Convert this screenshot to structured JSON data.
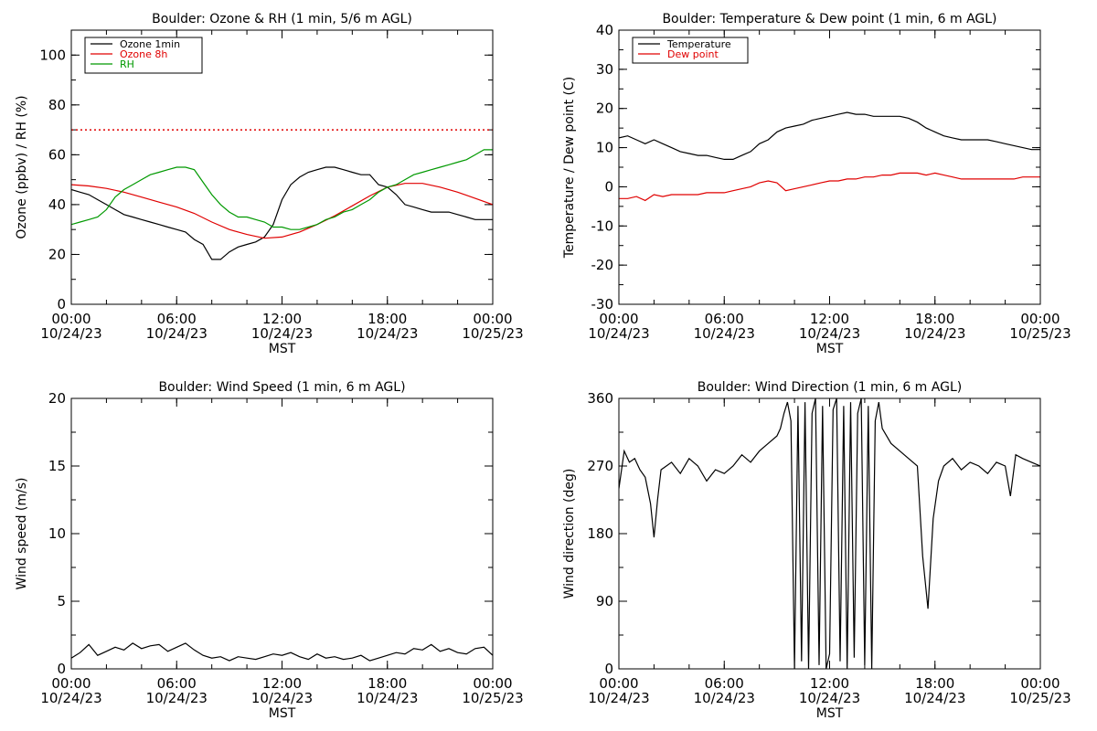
{
  "chart_data": [
    {
      "type": "line",
      "title": "Boulder: Ozone & RH (1 min, 5/6 m AGL)",
      "ylabel": "Ozone (ppbv) / RH (%)",
      "xlabel": "MST",
      "xlim": [
        0,
        24
      ],
      "ylim": [
        0,
        110
      ],
      "y_ticks": [
        0,
        20,
        40,
        60,
        80,
        100
      ],
      "x_ticks": [
        {
          "time": "00:00",
          "date": "10/24/23"
        },
        {
          "time": "06:00",
          "date": "10/24/23"
        },
        {
          "time": "12:00",
          "date": "10/24/23"
        },
        {
          "time": "18:00",
          "date": "10/24/23"
        },
        {
          "time": "00:00",
          "date": "10/25/23"
        }
      ],
      "legend": {
        "position": "top-left"
      },
      "series": [
        {
          "name": "Ozone 1min",
          "color": "#000000",
          "x": [
            0,
            0.5,
            1,
            1.5,
            2,
            2.5,
            3,
            3.5,
            4,
            4.5,
            5,
            5.5,
            6,
            6.5,
            7,
            7.5,
            8,
            8.5,
            9,
            9.5,
            10,
            10.5,
            11,
            11.5,
            12,
            12.5,
            13,
            13.5,
            14,
            14.5,
            15,
            15.5,
            16,
            16.5,
            17,
            17.5,
            18,
            18.5,
            19,
            19.5,
            20,
            20.5,
            21,
            21.5,
            22,
            22.5,
            23,
            23.5,
            24
          ],
          "y": [
            46,
            45,
            44,
            42,
            40,
            38,
            36,
            35,
            34,
            33,
            32,
            31,
            30,
            29,
            26,
            24,
            18,
            18,
            21,
            23,
            24,
            25,
            27,
            32,
            42,
            48,
            51,
            53,
            54,
            55,
            55,
            54,
            53,
            52,
            52,
            48,
            47,
            44,
            40,
            39,
            38,
            37,
            37,
            37,
            36,
            35,
            34,
            34,
            34
          ]
        },
        {
          "name": "Ozone 8h",
          "color": "#e00000",
          "x": [
            0,
            1,
            2,
            3,
            4,
            5,
            6,
            7,
            8,
            9,
            10,
            11,
            12,
            13,
            14,
            15,
            16,
            17,
            18,
            19,
            20,
            21,
            22,
            23,
            24
          ],
          "y": [
            48,
            47.5,
            46.5,
            45,
            43,
            41,
            39,
            36.5,
            33,
            30,
            28,
            26.5,
            27,
            29,
            32,
            35.5,
            39.5,
            43.5,
            47,
            48.5,
            48.5,
            47,
            45,
            42.5,
            40
          ]
        },
        {
          "name": "RH",
          "color": "#009900",
          "x": [
            0,
            0.5,
            1,
            1.5,
            2,
            2.5,
            3,
            3.5,
            4,
            4.5,
            5,
            5.5,
            6,
            6.5,
            7,
            7.5,
            8,
            8.5,
            9,
            9.5,
            10,
            10.5,
            11,
            11.5,
            12,
            12.5,
            13,
            13.5,
            14,
            14.5,
            15,
            15.5,
            16,
            16.5,
            17,
            17.5,
            18,
            18.5,
            19,
            19.5,
            20,
            20.5,
            21,
            21.5,
            22,
            22.5,
            23,
            23.5,
            24
          ],
          "y": [
            32,
            33,
            34,
            35,
            38,
            43,
            46,
            48,
            50,
            52,
            53,
            54,
            55,
            55,
            54,
            49,
            44,
            40,
            37,
            35,
            35,
            34,
            33,
            31,
            31,
            30,
            30,
            31,
            32,
            34,
            35,
            37,
            38,
            40,
            42,
            45,
            47,
            48,
            50,
            52,
            53,
            54,
            55,
            56,
            57,
            58,
            60,
            62,
            62
          ]
        },
        {
          "name": "",
          "color": "#e00000",
          "style": "dotted",
          "x": [
            0,
            24
          ],
          "y": [
            70,
            70
          ]
        }
      ]
    },
    {
      "type": "line",
      "title": "Boulder: Temperature & Dew point (1 min, 6 m AGL)",
      "ylabel": "Temperature / Dew point (C)",
      "xlabel": "MST",
      "xlim": [
        0,
        24
      ],
      "ylim": [
        -30,
        40
      ],
      "y_ticks": [
        -30,
        -20,
        -10,
        0,
        10,
        20,
        30,
        40
      ],
      "x_ticks": [
        {
          "time": "00:00",
          "date": "10/24/23"
        },
        {
          "time": "06:00",
          "date": "10/24/23"
        },
        {
          "time": "12:00",
          "date": "10/24/23"
        },
        {
          "time": "18:00",
          "date": "10/24/23"
        },
        {
          "time": "00:00",
          "date": "10/25/23"
        }
      ],
      "legend": {
        "position": "top-left"
      },
      "series": [
        {
          "name": "Temperature",
          "color": "#000000",
          "x": [
            0,
            0.5,
            1,
            1.5,
            2,
            2.5,
            3,
            3.5,
            4,
            4.5,
            5,
            5.5,
            6,
            6.5,
            7,
            7.5,
            8,
            8.5,
            9,
            9.5,
            10,
            10.5,
            11,
            11.5,
            12,
            12.5,
            13,
            13.5,
            14,
            14.5,
            15,
            15.5,
            16,
            16.5,
            17,
            17.5,
            18,
            18.5,
            19,
            19.5,
            20,
            20.5,
            21,
            21.5,
            22,
            22.5,
            23,
            23.5,
            24
          ],
          "y": [
            12.5,
            13,
            12,
            11,
            12,
            11,
            10,
            9,
            8.5,
            8,
            8,
            7.5,
            7,
            7,
            8,
            9,
            11,
            12,
            14,
            15,
            15.5,
            16,
            17,
            17.5,
            18,
            18.5,
            19,
            18.5,
            18.5,
            18,
            18,
            18,
            18,
            17.5,
            16.5,
            15,
            14,
            13,
            12.5,
            12,
            12,
            12,
            12,
            11.5,
            11,
            10.5,
            10,
            9.5,
            9.5
          ]
        },
        {
          "name": "Dew point",
          "color": "#e00000",
          "x": [
            0,
            0.5,
            1,
            1.5,
            2,
            2.5,
            3,
            3.5,
            4,
            4.5,
            5,
            5.5,
            6,
            6.5,
            7,
            7.5,
            8,
            8.5,
            9,
            9.5,
            10,
            10.5,
            11,
            11.5,
            12,
            12.5,
            13,
            13.5,
            14,
            14.5,
            15,
            15.5,
            16,
            16.5,
            17,
            17.5,
            18,
            18.5,
            19,
            19.5,
            20,
            20.5,
            21,
            21.5,
            22,
            22.5,
            23,
            23.5,
            24
          ],
          "y": [
            -3,
            -3,
            -2.5,
            -3.5,
            -2,
            -2.5,
            -2,
            -2,
            -2,
            -2,
            -1.5,
            -1.5,
            -1.5,
            -1,
            -0.5,
            0,
            1,
            1.5,
            1,
            -1,
            -0.5,
            0,
            0.5,
            1,
            1.5,
            1.5,
            2,
            2,
            2.5,
            2.5,
            3,
            3,
            3.5,
            3.5,
            3.5,
            3,
            3.5,
            3,
            2.5,
            2,
            2,
            2,
            2,
            2,
            2,
            2,
            2.5,
            2.5,
            2.5
          ]
        }
      ]
    },
    {
      "type": "line",
      "title": "Boulder: Wind Speed (1 min, 6 m AGL)",
      "ylabel": "Wind speed (m/s)",
      "xlabel": "MST",
      "xlim": [
        0,
        24
      ],
      "ylim": [
        0,
        20
      ],
      "y_ticks": [
        0,
        5,
        10,
        15,
        20
      ],
      "x_ticks": [
        {
          "time": "00:00",
          "date": "10/24/23"
        },
        {
          "time": "06:00",
          "date": "10/24/23"
        },
        {
          "time": "12:00",
          "date": "10/24/23"
        },
        {
          "time": "18:00",
          "date": "10/24/23"
        },
        {
          "time": "00:00",
          "date": "10/25/23"
        }
      ],
      "series": [
        {
          "name": "",
          "color": "#000000",
          "x": [
            0,
            0.5,
            1,
            1.5,
            2,
            2.5,
            3,
            3.5,
            4,
            4.5,
            5,
            5.5,
            6,
            6.5,
            7,
            7.5,
            8,
            8.5,
            9,
            9.5,
            10,
            10.5,
            11,
            11.5,
            12,
            12.5,
            13,
            13.5,
            14,
            14.5,
            15,
            15.5,
            16,
            16.5,
            17,
            17.5,
            18,
            18.5,
            19,
            19.5,
            20,
            20.5,
            21,
            21.5,
            22,
            22.5,
            23,
            23.5,
            24
          ],
          "y": [
            0.8,
            1.2,
            1.8,
            1.0,
            1.3,
            1.6,
            1.4,
            1.9,
            1.5,
            1.7,
            1.8,
            1.3,
            1.6,
            1.9,
            1.4,
            1.0,
            0.8,
            0.9,
            0.6,
            0.9,
            0.8,
            0.7,
            0.9,
            1.1,
            1.0,
            1.2,
            0.9,
            0.7,
            1.1,
            0.8,
            0.9,
            0.7,
            0.8,
            1.0,
            0.6,
            0.8,
            1.0,
            1.2,
            1.1,
            1.5,
            1.4,
            1.8,
            1.3,
            1.5,
            1.2,
            1.1,
            1.5,
            1.6,
            1.0
          ]
        }
      ]
    },
    {
      "type": "line",
      "title": "Boulder: Wind Direction (1 min, 6 m AGL)",
      "ylabel": "Wind direction (deg)",
      "xlabel": "MST",
      "xlim": [
        0,
        24
      ],
      "ylim": [
        0,
        360
      ],
      "y_ticks": [
        0,
        90,
        180,
        270,
        360
      ],
      "x_ticks": [
        {
          "time": "00:00",
          "date": "10/24/23"
        },
        {
          "time": "06:00",
          "date": "10/24/23"
        },
        {
          "time": "12:00",
          "date": "10/24/23"
        },
        {
          "time": "18:00",
          "date": "10/24/23"
        },
        {
          "time": "00:00",
          "date": "10/25/23"
        }
      ],
      "series": [
        {
          "name": "",
          "color": "#000000",
          "x": [
            0,
            0.3,
            0.6,
            0.9,
            1.2,
            1.5,
            1.8,
            2.0,
            2.2,
            2.4,
            2.7,
            3,
            3.5,
            4,
            4.5,
            5,
            5.5,
            6,
            6.5,
            7,
            7.5,
            8,
            8.5,
            9,
            9.2,
            9.4,
            9.6,
            9.8,
            10,
            10.2,
            10.4,
            10.6,
            10.8,
            11,
            11.2,
            11.4,
            11.6,
            11.8,
            12,
            12.2,
            12.4,
            12.6,
            12.8,
            13,
            13.2,
            13.4,
            13.6,
            13.8,
            14,
            14.2,
            14.4,
            14.6,
            14.8,
            15,
            15.5,
            16,
            16.5,
            17,
            17.3,
            17.6,
            17.9,
            18.2,
            18.5,
            19,
            19.5,
            20,
            20.5,
            21,
            21.5,
            22,
            22.3,
            22.6,
            23,
            23.5,
            24
          ],
          "y": [
            240,
            290,
            275,
            280,
            265,
            255,
            220,
            175,
            225,
            265,
            270,
            275,
            260,
            280,
            270,
            250,
            265,
            260,
            270,
            285,
            275,
            290,
            300,
            310,
            320,
            340,
            355,
            330,
            0,
            350,
            10,
            355,
            0,
            340,
            360,
            5,
            350,
            0,
            20,
            345,
            360,
            10,
            350,
            0,
            355,
            15,
            340,
            360,
            5,
            350,
            0,
            330,
            355,
            320,
            300,
            290,
            280,
            270,
            150,
            80,
            200,
            250,
            270,
            280,
            265,
            275,
            270,
            260,
            275,
            270,
            230,
            285,
            280,
            275,
            270
          ]
        }
      ]
    }
  ]
}
